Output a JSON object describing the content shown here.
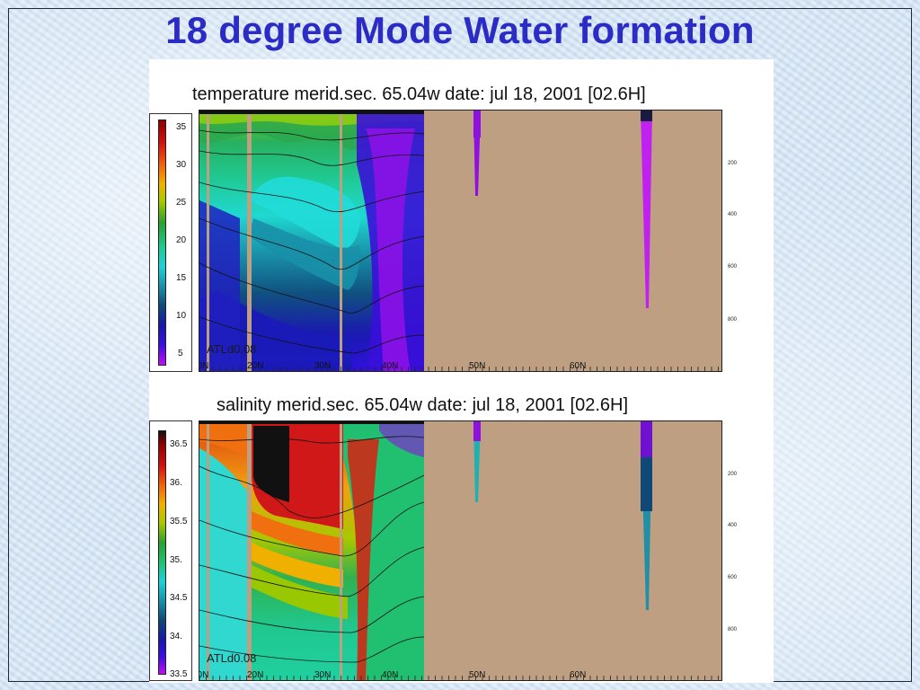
{
  "title": "18 degree Mode Water formation",
  "chart_data": [
    {
      "type": "heatmap",
      "title": "temperature merid.sec. 65.04w   date: jul 18, 2001   [02.6H]",
      "model_label": "ATLd0.08",
      "colorbar_ticks": [
        "35",
        "30",
        "25",
        "20",
        "15",
        "10",
        "5"
      ],
      "colorbar_range": [
        4,
        36
      ],
      "x_ticks": [
        "10N",
        "20N",
        "30N",
        "40N",
        "50N",
        "60N"
      ],
      "depth_ticks": [
        "200",
        "400",
        "600",
        "800"
      ],
      "colors": {
        "land": "#bf9f82",
        "top": "#dfe800",
        "cold": "#3a1ad0"
      }
    },
    {
      "type": "heatmap",
      "title": "salinity merid.sec. 65.04w   date: jul 18, 2001   [02.6H]",
      "model_label": "ATLd0.08",
      "colorbar_ticks": [
        "36.5",
        "36.",
        "35.5",
        "35.",
        "34.5",
        "34.",
        "33.5"
      ],
      "colorbar_range": [
        33.4,
        36.7
      ],
      "x_ticks": [
        "10N",
        "20N",
        "30N",
        "40N",
        "50N",
        "60N"
      ],
      "depth_ticks": [
        "200",
        "400",
        "600",
        "800"
      ],
      "colors": {
        "land": "#bf9f82",
        "salty": "#b01010",
        "fresh": "#40d8d0"
      }
    }
  ]
}
